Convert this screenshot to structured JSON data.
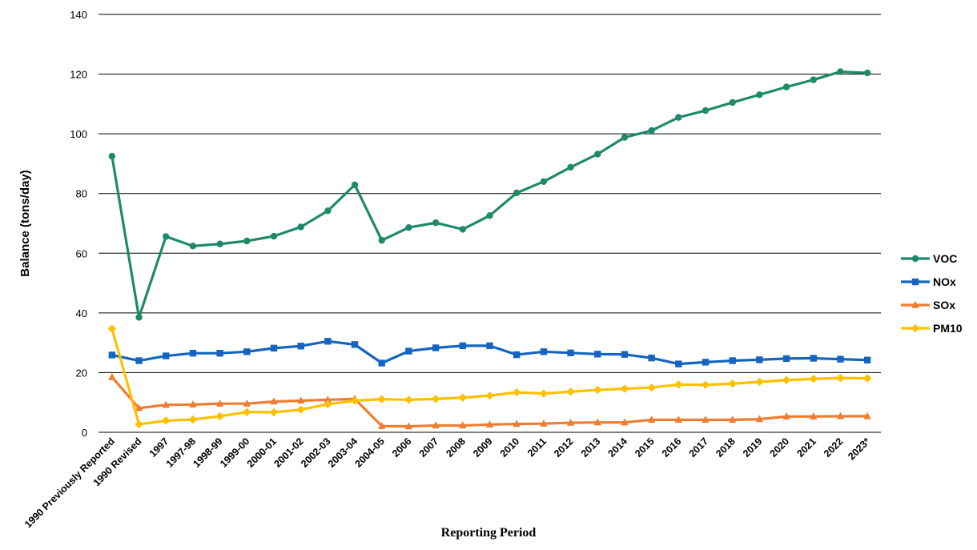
{
  "chart_data": {
    "type": "line",
    "xlabel": "Reporting Period",
    "ylabel": "Balance (tons/day)",
    "ylim": [
      0,
      140
    ],
    "yticks": [
      0,
      20,
      40,
      60,
      80,
      100,
      120,
      140
    ],
    "grid": "horizontal",
    "legend_position": "right",
    "categories": [
      "1990 Previously Reported",
      "1990 Revised",
      "1997",
      "1997-98",
      "1998-99",
      "1999-00",
      "2000-01",
      "2001-02",
      "2002-03",
      "2003-04",
      "2004-05",
      "2006",
      "2007",
      "2008",
      "2009",
      "2010",
      "2011",
      "2012",
      "2013",
      "2014",
      "2015",
      "2016",
      "2017",
      "2018",
      "2019",
      "2020",
      "2021",
      "2022",
      "2023*"
    ],
    "series": [
      {
        "name": "VOC",
        "color": "#1f8a6b",
        "marker": "circle",
        "values": [
          92.5,
          38.5,
          65.6,
          62.4,
          63.1,
          64.1,
          65.7,
          68.8,
          74.2,
          82.9,
          64.3,
          68.6,
          70.2,
          68.0,
          72.6,
          80.2,
          84.0,
          88.8,
          93.2,
          98.8,
          101.1,
          105.5,
          107.8,
          110.5,
          113.1,
          115.7,
          118.1,
          120.8,
          120.4
        ]
      },
      {
        "name": "NOx",
        "color": "#1565c0",
        "marker": "square",
        "values": [
          25.9,
          24.0,
          25.6,
          26.5,
          26.5,
          27.0,
          28.2,
          28.9,
          30.5,
          29.4,
          23.2,
          27.2,
          28.3,
          29.0,
          29.0,
          26.0,
          27.0,
          26.6,
          26.2,
          26.1,
          24.9,
          22.9,
          23.5,
          24.0,
          24.3,
          24.7,
          24.8,
          24.5,
          24.2
        ]
      },
      {
        "name": "SOx",
        "color": "#ed7d31",
        "marker": "triangle",
        "values": [
          18.5,
          8.1,
          9.2,
          9.3,
          9.6,
          9.6,
          10.3,
          10.6,
          10.9,
          11.2,
          2.1,
          2.0,
          2.3,
          2.3,
          2.6,
          2.8,
          2.9,
          3.2,
          3.3,
          3.3,
          4.2,
          4.2,
          4.2,
          4.2,
          4.4,
          5.3,
          5.3,
          5.4,
          5.4
        ]
      },
      {
        "name": "PM10",
        "color": "#ffc000",
        "marker": "diamond",
        "values": [
          34.7,
          2.7,
          3.9,
          4.3,
          5.4,
          6.8,
          6.7,
          7.6,
          9.4,
          10.6,
          11.1,
          10.9,
          11.2,
          11.6,
          12.3,
          13.4,
          13.0,
          13.6,
          14.2,
          14.6,
          15.0,
          16.0,
          15.9,
          16.3,
          16.9,
          17.5,
          17.9,
          18.2,
          18.1
        ]
      }
    ]
  }
}
